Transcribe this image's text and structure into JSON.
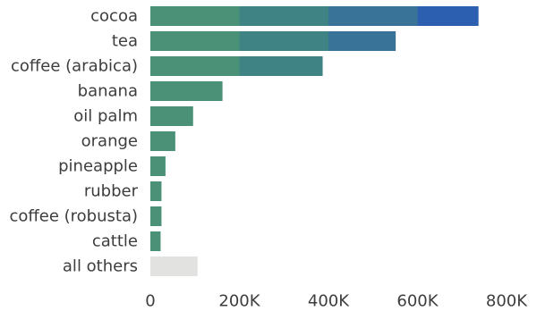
{
  "chart_data": {
    "type": "bar",
    "orientation": "horizontal",
    "categories": [
      "cocoa",
      "tea",
      "coffee (arabica)",
      "banana",
      "oil palm",
      "orange",
      "pineapple",
      "rubber",
      "coffee (robusta)",
      "cattle",
      "all others"
    ],
    "values": [
      737000,
      551000,
      387000,
      162000,
      96000,
      56000,
      34000,
      25000,
      25000,
      23000,
      106000
    ],
    "xlim": [
      0,
      800000
    ],
    "xticks": [
      0,
      200000,
      400000,
      600000,
      800000
    ],
    "xtick_labels": [
      "0",
      "200K",
      "400K",
      "600K",
      "800K"
    ],
    "band_edges": [
      0,
      200000,
      400000,
      600000
    ],
    "band_colors": [
      "#4a9177",
      "#3f8385",
      "#3a7398",
      "#2d5fb0"
    ],
    "other_color": "#e2e3e1",
    "grid": false,
    "legend": "none",
    "title": "",
    "xlabel": "",
    "ylabel": ""
  }
}
